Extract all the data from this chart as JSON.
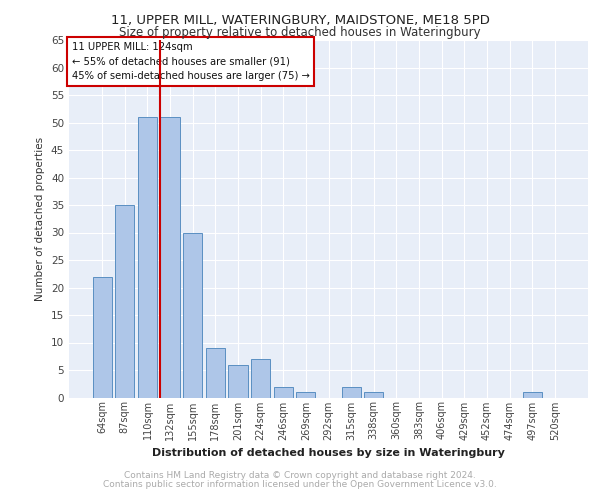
{
  "title1": "11, UPPER MILL, WATERINGBURY, MAIDSTONE, ME18 5PD",
  "title2": "Size of property relative to detached houses in Wateringbury",
  "xlabel": "Distribution of detached houses by size in Wateringbury",
  "ylabel": "Number of detached properties",
  "categories": [
    "64sqm",
    "87sqm",
    "110sqm",
    "132sqm",
    "155sqm",
    "178sqm",
    "201sqm",
    "224sqm",
    "246sqm",
    "269sqm",
    "292sqm",
    "315sqm",
    "338sqm",
    "360sqm",
    "383sqm",
    "406sqm",
    "429sqm",
    "452sqm",
    "474sqm",
    "497sqm",
    "520sqm"
  ],
  "values": [
    22,
    35,
    51,
    51,
    30,
    9,
    6,
    7,
    2,
    1,
    0,
    2,
    1,
    0,
    0,
    0,
    0,
    0,
    0,
    1,
    0
  ],
  "bar_color": "#aec6e8",
  "bar_edge_color": "#5a8fc2",
  "vline_color": "#cc0000",
  "vline_x": 2.57,
  "annotation_line1": "11 UPPER MILL: 124sqm",
  "annotation_line2": "← 55% of detached houses are smaller (91)",
  "annotation_line3": "45% of semi-detached houses are larger (75) →",
  "annotation_box_color": "#cc0000",
  "ylim": [
    0,
    65
  ],
  "yticks": [
    0,
    5,
    10,
    15,
    20,
    25,
    30,
    35,
    40,
    45,
    50,
    55,
    60,
    65
  ],
  "footer_line1": "Contains HM Land Registry data © Crown copyright and database right 2024.",
  "footer_line2": "Contains public sector information licensed under the Open Government Licence v3.0.",
  "plot_bg_color": "#e8eef8"
}
